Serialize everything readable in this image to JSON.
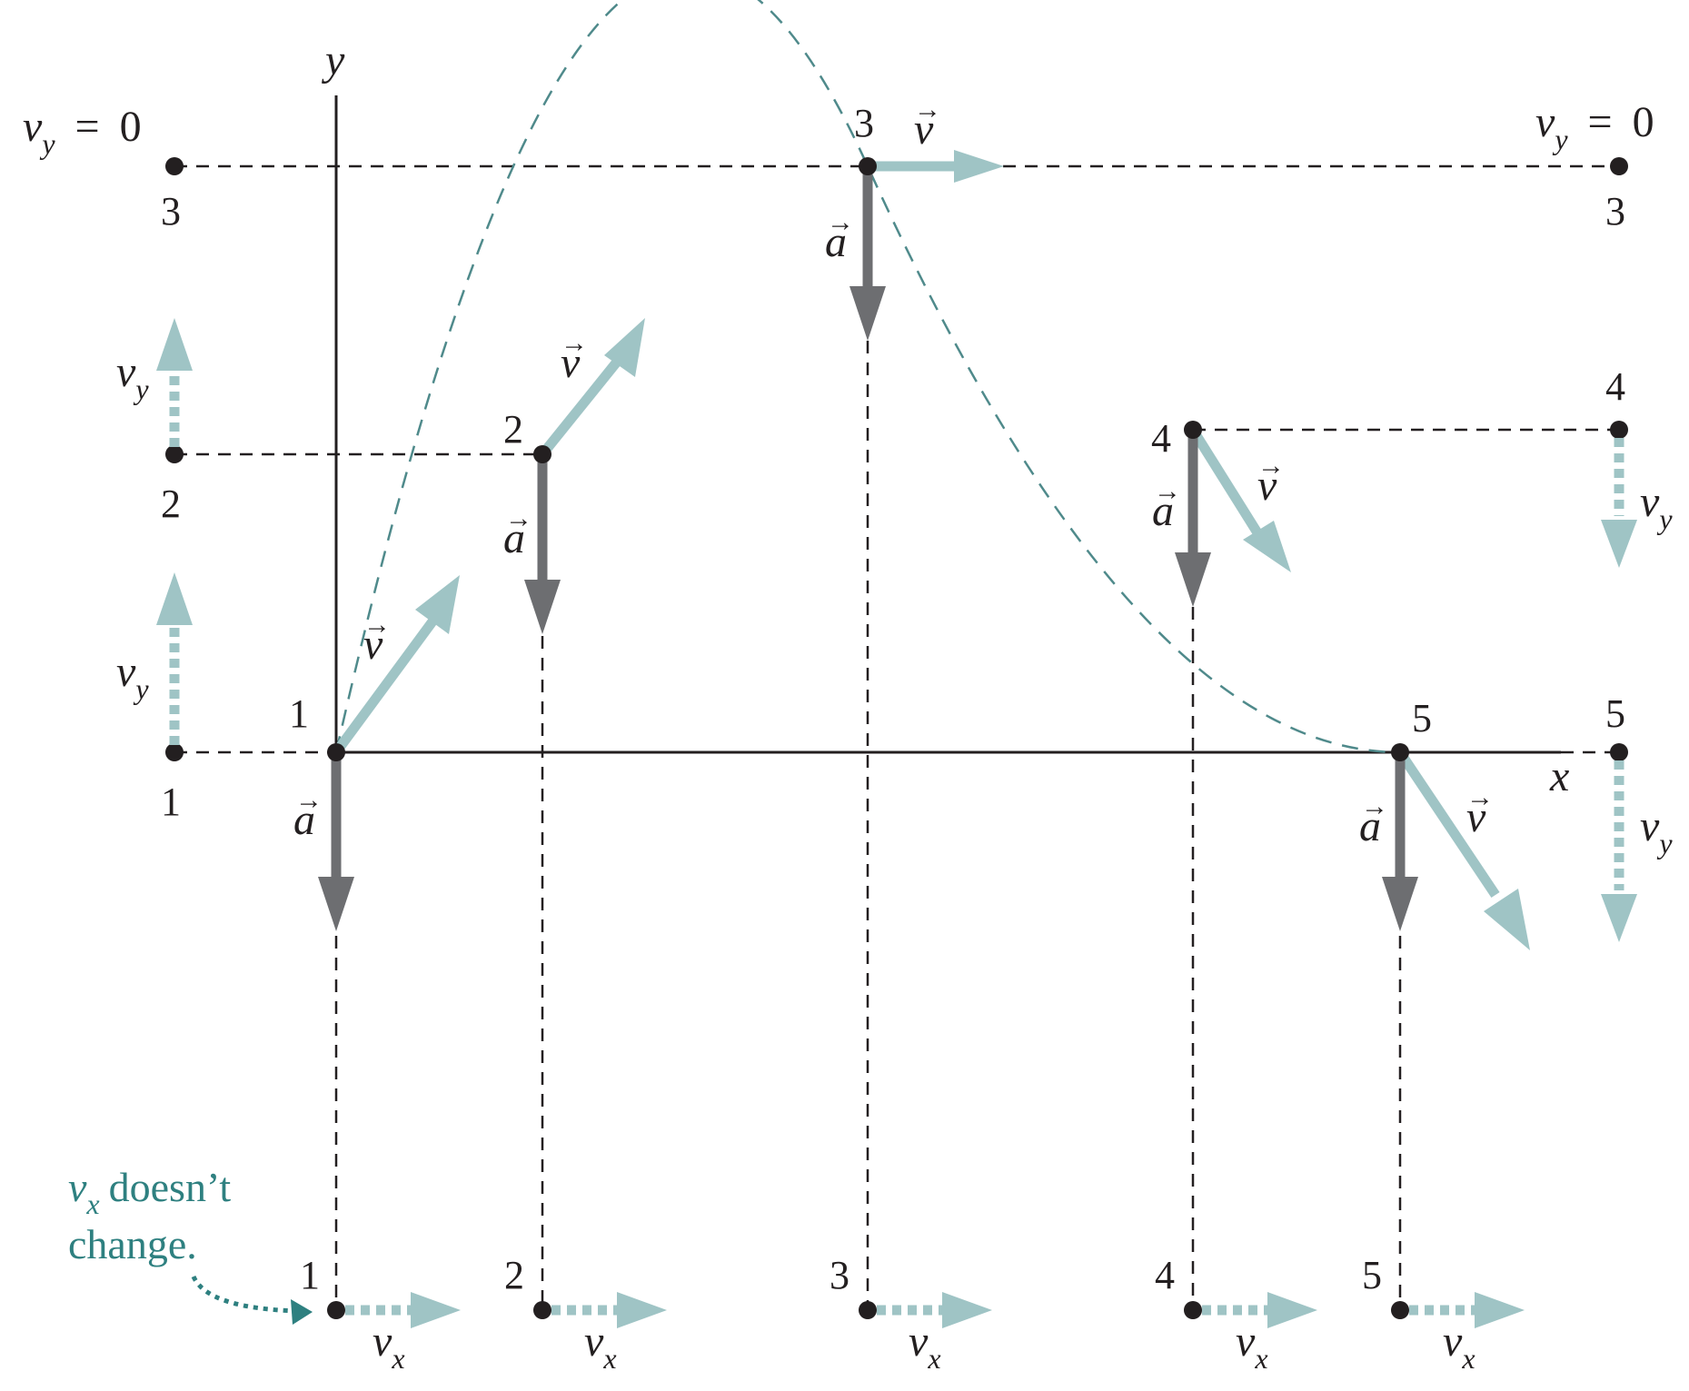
{
  "figure": {
    "axes": {
      "y_label": "y",
      "x_label": "x"
    },
    "vector_symbols": {
      "velocity": "v",
      "acceleration": "a"
    },
    "component_symbols": {
      "v": "v",
      "y": "y",
      "x": "x"
    },
    "top_equation": {
      "equals": "=",
      "zero": "0"
    },
    "points": [
      "1",
      "2",
      "3",
      "4",
      "5"
    ],
    "note": {
      "word1": "doesn’t",
      "word2": "change."
    },
    "colors": {
      "trajectory": "#4f8a8b",
      "velocity_vector": "#9fc4c5",
      "acceleration_vector": "#6d6e71",
      "component_arrow": "#9fc4c5",
      "note_text": "#2e8080",
      "ink": "#231f20"
    }
  }
}
